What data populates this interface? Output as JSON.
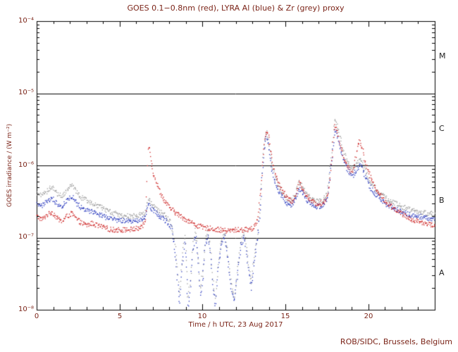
{
  "title": "GOES 0.1−0.8nm (red), LYRA Al (blue) & Zr (grey) proxy",
  "footer": "ROB/SIDC, Brussels, Belgium",
  "colors": {
    "red_series": "#cc2222",
    "blue_series": "#2233bb",
    "grey_series": "#9a9a9a",
    "axis": "#000000",
    "text": "#7b2418",
    "flare_class_text": "#222222",
    "background": "#ffffff"
  },
  "chart_data": {
    "type": "scatter",
    "title": "GOES 0.1−0.8nm (red), LYRA Al (blue) & Zr (grey) proxy",
    "xlabel": "Time / h UTC, 23 Aug 2017",
    "ylabel": "GOES irradiance / (W m⁻²)",
    "xlim": [
      0,
      24
    ],
    "ylim": [
      1e-08,
      0.0001
    ],
    "yscale": "log",
    "grid": false,
    "hlines": [
      1e-05,
      1e-06,
      1e-07
    ],
    "xticks": [
      {
        "label": "0",
        "v": 0
      },
      {
        "label": "5",
        "v": 5
      },
      {
        "label": "10",
        "v": 10
      },
      {
        "label": "15",
        "v": 15
      },
      {
        "label": "20",
        "v": 20
      }
    ],
    "yticks": [
      {
        "label": "10⁻⁴",
        "v": 0.0001
      },
      {
        "label": "10⁻⁵",
        "v": 1e-05
      },
      {
        "label": "10⁻⁶",
        "v": 1e-06
      },
      {
        "label": "10⁻⁷",
        "v": 1e-07
      },
      {
        "label": "10⁻⁸",
        "v": 1e-08
      }
    ],
    "flare_class_labels": [
      {
        "label": "M",
        "v": 3.16e-05
      },
      {
        "label": "C",
        "v": 3.16e-06
      },
      {
        "label": "B",
        "v": 3.16e-07
      },
      {
        "label": "A",
        "v": 3.16e-08
      }
    ],
    "series": [
      {
        "name": "GOES 0.1−0.8nm",
        "color": "#cc2222",
        "points": [
          [
            0,
            2e-07
          ],
          [
            0.3,
            1.8e-07
          ],
          [
            0.6,
            2.1e-07
          ],
          [
            0.9,
            2.3e-07
          ],
          [
            1.2,
            1.9e-07
          ],
          [
            1.5,
            1.7e-07
          ],
          [
            1.8,
            2e-07
          ],
          [
            2.1,
            2.2e-07
          ],
          [
            2.4,
            1.8e-07
          ],
          [
            2.7,
            1.6e-07
          ],
          [
            3.0,
            1.5e-07
          ],
          [
            3.3,
            1.6e-07
          ],
          [
            3.6,
            1.5e-07
          ],
          [
            4.0,
            1.4e-07
          ],
          [
            4.5,
            1.3e-07
          ],
          [
            5.0,
            1.3e-07
          ],
          [
            5.5,
            1.3e-07
          ],
          [
            6.0,
            1.35e-07
          ],
          [
            6.3,
            1.4e-07
          ],
          [
            6.55,
            1.8e-07
          ],
          [
            6.7,
            2e-06
          ],
          [
            6.8,
            1.6e-06
          ],
          [
            7.0,
            8e-07
          ],
          [
            7.3,
            5e-07
          ],
          [
            7.6,
            3.5e-07
          ],
          [
            8.0,
            2.6e-07
          ],
          [
            8.4,
            2.2e-07
          ],
          [
            8.8,
            1.9e-07
          ],
          [
            9.2,
            1.7e-07
          ],
          [
            9.6,
            1.5e-07
          ],
          [
            10.0,
            1.4e-07
          ],
          [
            10.5,
            1.35e-07
          ],
          [
            11.0,
            1.3e-07
          ],
          [
            11.5,
            1.25e-07
          ],
          [
            12.0,
            1.3e-07
          ],
          [
            12.5,
            1.3e-07
          ],
          [
            13.0,
            1.35e-07
          ],
          [
            13.3,
            1.8e-07
          ],
          [
            13.5,
            5e-07
          ],
          [
            13.7,
            2e-06
          ],
          [
            13.85,
            3.1e-06
          ],
          [
            14.0,
            2.2e-06
          ],
          [
            14.2,
            1.1e-06
          ],
          [
            14.5,
            6e-07
          ],
          [
            14.8,
            4.5e-07
          ],
          [
            15.1,
            3.5e-07
          ],
          [
            15.4,
            3.2e-07
          ],
          [
            15.6,
            4e-07
          ],
          [
            15.8,
            6e-07
          ],
          [
            16.0,
            5e-07
          ],
          [
            16.2,
            4e-07
          ],
          [
            16.5,
            3.3e-07
          ],
          [
            16.8,
            3e-07
          ],
          [
            17.1,
            3e-07
          ],
          [
            17.4,
            3.3e-07
          ],
          [
            17.6,
            5e-07
          ],
          [
            17.8,
            1.5e-06
          ],
          [
            17.95,
            3.8e-06
          ],
          [
            18.1,
            3e-06
          ],
          [
            18.3,
            1.8e-06
          ],
          [
            18.6,
            1.1e-06
          ],
          [
            18.9,
            8.5e-07
          ],
          [
            19.1,
            9e-07
          ],
          [
            19.3,
            1.8e-06
          ],
          [
            19.45,
            2.3e-06
          ],
          [
            19.6,
            1.8e-06
          ],
          [
            19.8,
            1.1e-06
          ],
          [
            20.0,
            8e-07
          ],
          [
            20.3,
            5.5e-07
          ],
          [
            20.6,
            4.2e-07
          ],
          [
            21.0,
            3.2e-07
          ],
          [
            21.4,
            2.7e-07
          ],
          [
            21.8,
            2.3e-07
          ],
          [
            22.2,
            2e-07
          ],
          [
            22.6,
            1.8e-07
          ],
          [
            23.0,
            1.7e-07
          ],
          [
            23.4,
            1.6e-07
          ],
          [
            23.7,
            1.55e-07
          ],
          [
            24,
            1.5e-07
          ]
        ]
      },
      {
        "name": "LYRA Al proxy",
        "color": "#2233bb",
        "points": [
          [
            0,
            3e-07
          ],
          [
            0.3,
            2.8e-07
          ],
          [
            0.6,
            3.2e-07
          ],
          [
            0.9,
            3.6e-07
          ],
          [
            1.2,
            3e-07
          ],
          [
            1.5,
            2.8e-07
          ],
          [
            1.8,
            3.3e-07
          ],
          [
            2.1,
            3.8e-07
          ],
          [
            2.4,
            3e-07
          ],
          [
            2.7,
            2.6e-07
          ],
          [
            3.0,
            2.4e-07
          ],
          [
            3.4,
            2.3e-07
          ],
          [
            3.8,
            2.1e-07
          ],
          [
            4.2,
            1.9e-07
          ],
          [
            4.6,
            1.8e-07
          ],
          [
            5.0,
            1.75e-07
          ],
          [
            5.5,
            1.7e-07
          ],
          [
            6.0,
            1.75e-07
          ],
          [
            6.5,
            1.9e-07
          ],
          [
            6.7,
            3e-07
          ],
          [
            7.0,
            2.4e-07
          ],
          [
            7.4,
            2e-07
          ],
          [
            7.8,
            1.7e-07
          ],
          [
            8.1,
            1.4e-07
          ],
          [
            8.3,
            7e-08
          ],
          [
            8.45,
            3e-08
          ],
          [
            8.6,
            1.2e-08
          ],
          [
            8.75,
            4e-08
          ],
          [
            8.9,
            9e-08
          ],
          [
            9.0,
            4e-08
          ],
          [
            9.1,
            1.1e-08
          ],
          [
            9.25,
            2.2e-08
          ],
          [
            9.4,
            7e-08
          ],
          [
            9.55,
            1.1e-07
          ],
          [
            9.7,
            5e-08
          ],
          [
            9.85,
            1.6e-08
          ],
          [
            10.0,
            3e-08
          ],
          [
            10.15,
            8e-08
          ],
          [
            10.3,
            1.1e-07
          ],
          [
            10.45,
            6e-08
          ],
          [
            10.6,
            2.2e-08
          ],
          [
            10.75,
            1.1e-08
          ],
          [
            10.9,
            3.5e-08
          ],
          [
            11.1,
            8e-08
          ],
          [
            11.3,
            1.05e-07
          ],
          [
            11.5,
            5e-08
          ],
          [
            11.7,
            2e-08
          ],
          [
            11.9,
            1.3e-08
          ],
          [
            12.1,
            3.5e-08
          ],
          [
            12.3,
            8e-08
          ],
          [
            12.5,
            1.05e-07
          ],
          [
            12.7,
            4.5e-08
          ],
          [
            12.9,
            2e-08
          ],
          [
            13.1,
            5e-08
          ],
          [
            13.3,
            1e-07
          ],
          [
            13.45,
            2.5e-07
          ],
          [
            13.6,
            9e-07
          ],
          [
            13.8,
            2.6e-06
          ],
          [
            13.95,
            2e-06
          ],
          [
            14.15,
            9e-07
          ],
          [
            14.45,
            5e-07
          ],
          [
            14.75,
            3.8e-07
          ],
          [
            15.05,
            3e-07
          ],
          [
            15.35,
            2.8e-07
          ],
          [
            15.6,
            3.5e-07
          ],
          [
            15.8,
            5e-07
          ],
          [
            16.0,
            4.2e-07
          ],
          [
            16.3,
            3.3e-07
          ],
          [
            16.6,
            2.9e-07
          ],
          [
            16.9,
            2.7e-07
          ],
          [
            17.2,
            2.8e-07
          ],
          [
            17.5,
            3.5e-07
          ],
          [
            17.75,
            1.1e-06
          ],
          [
            17.95,
            3.2e-06
          ],
          [
            18.15,
            2.4e-06
          ],
          [
            18.4,
            1.4e-06
          ],
          [
            18.7,
            9e-07
          ],
          [
            19.0,
            7e-07
          ],
          [
            19.3,
            9e-07
          ],
          [
            19.5,
            1.1e-06
          ],
          [
            19.8,
            7e-07
          ],
          [
            20.1,
            5e-07
          ],
          [
            20.5,
            3.8e-07
          ],
          [
            21.0,
            3e-07
          ],
          [
            21.5,
            2.6e-07
          ],
          [
            22.0,
            2.3e-07
          ],
          [
            22.5,
            2.1e-07
          ],
          [
            23.0,
            2e-07
          ],
          [
            23.5,
            1.9e-07
          ],
          [
            24,
            1.85e-07
          ]
        ]
      },
      {
        "name": "LYRA Zr proxy",
        "color": "#9a9a9a",
        "points": [
          [
            0,
            4.2e-07
          ],
          [
            0.3,
            3.8e-07
          ],
          [
            0.6,
            4.5e-07
          ],
          [
            0.9,
            5.2e-07
          ],
          [
            1.2,
            4.2e-07
          ],
          [
            1.5,
            3.8e-07
          ],
          [
            1.8,
            4.6e-07
          ],
          [
            2.1,
            5.5e-07
          ],
          [
            2.4,
            4.2e-07
          ],
          [
            2.7,
            3.6e-07
          ],
          [
            3.0,
            3.3e-07
          ],
          [
            3.4,
            3e-07
          ],
          [
            3.8,
            2.7e-07
          ],
          [
            4.2,
            2.4e-07
          ],
          [
            4.6,
            2.2e-07
          ],
          [
            5.0,
            2.1e-07
          ],
          [
            5.5,
            2e-07
          ],
          [
            6.0,
            2.05e-07
          ],
          [
            6.5,
            2.2e-07
          ],
          [
            6.7,
            3.4e-07
          ],
          [
            7.0,
            2.8e-07
          ],
          [
            7.4,
            2.3e-07
          ],
          [
            7.8,
            2e-07
          ],
          [
            8.1,
            1.6e-07
          ],
          [
            8.3,
            9e-08
          ],
          [
            8.45,
            4e-08
          ],
          [
            8.6,
            1.5e-08
          ],
          [
            8.75,
            5e-08
          ],
          [
            8.9,
            1.1e-07
          ],
          [
            9.0,
            5e-08
          ],
          [
            9.1,
            1.4e-08
          ],
          [
            9.25,
            2.8e-08
          ],
          [
            9.4,
            8e-08
          ],
          [
            9.55,
            1.3e-07
          ],
          [
            9.7,
            6e-08
          ],
          [
            9.85,
            2e-08
          ],
          [
            10.0,
            3.6e-08
          ],
          [
            10.15,
            9e-08
          ],
          [
            10.3,
            1.3e-07
          ],
          [
            10.45,
            7e-08
          ],
          [
            10.6,
            2.6e-08
          ],
          [
            10.75,
            1.3e-08
          ],
          [
            10.9,
            4e-08
          ],
          [
            11.1,
            9e-08
          ],
          [
            11.3,
            1.2e-07
          ],
          [
            11.5,
            6e-08
          ],
          [
            11.7,
            2.4e-08
          ],
          [
            11.9,
            1.5e-08
          ],
          [
            12.1,
            4e-08
          ],
          [
            12.3,
            9e-08
          ],
          [
            12.5,
            1.2e-07
          ],
          [
            12.7,
            5.5e-08
          ],
          [
            12.9,
            2.4e-08
          ],
          [
            13.1,
            6e-08
          ],
          [
            13.3,
            1.2e-07
          ],
          [
            13.45,
            3e-07
          ],
          [
            13.6,
            1.1e-06
          ],
          [
            13.8,
            3e-06
          ],
          [
            13.95,
            2.3e-06
          ],
          [
            14.15,
            1.05e-06
          ],
          [
            14.45,
            6e-07
          ],
          [
            14.75,
            4.5e-07
          ],
          [
            15.05,
            3.6e-07
          ],
          [
            15.35,
            3.3e-07
          ],
          [
            15.6,
            4.2e-07
          ],
          [
            15.8,
            6e-07
          ],
          [
            16.0,
            5e-07
          ],
          [
            16.3,
            3.9e-07
          ],
          [
            16.6,
            3.4e-07
          ],
          [
            16.9,
            3.2e-07
          ],
          [
            17.2,
            3.3e-07
          ],
          [
            17.5,
            4.2e-07
          ],
          [
            17.75,
            1.4e-06
          ],
          [
            17.95,
            4.5e-06
          ],
          [
            18.15,
            3.2e-06
          ],
          [
            18.4,
            1.8e-06
          ],
          [
            18.7,
            1.15e-06
          ],
          [
            19.0,
            9e-07
          ],
          [
            19.3,
            1.1e-06
          ],
          [
            19.5,
            1.3e-06
          ],
          [
            19.8,
            8.5e-07
          ],
          [
            20.1,
            6e-07
          ],
          [
            20.5,
            4.6e-07
          ],
          [
            21.0,
            3.6e-07
          ],
          [
            21.5,
            3.1e-07
          ],
          [
            22.0,
            2.7e-07
          ],
          [
            22.5,
            2.5e-07
          ],
          [
            23.0,
            2.35e-07
          ],
          [
            23.5,
            2.2e-07
          ],
          [
            24,
            2.15e-07
          ]
        ]
      }
    ]
  }
}
